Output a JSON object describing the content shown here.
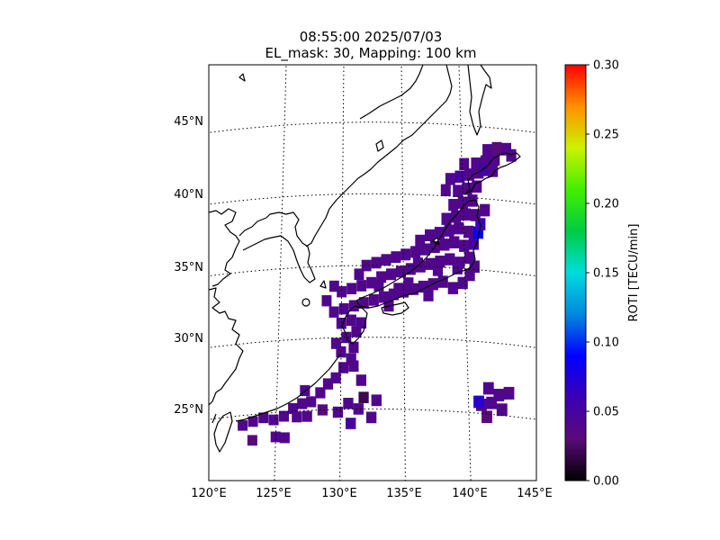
{
  "title": {
    "line1": "08:55:00 2025/07/03",
    "line2": "EL_mask: 30, Mapping: 100 km"
  },
  "colorbar": {
    "label": "ROTI [TECU/min]",
    "colormap": "nipy_spectral-like",
    "ticks": [
      "0.00",
      "0.05",
      "0.10",
      "0.15",
      "0.20",
      "0.25",
      "0.30"
    ]
  },
  "chart_data": {
    "type": "heatmap",
    "projection": "conic (Lambert-like) map",
    "extent": {
      "lon": [
        120,
        145
      ],
      "lat": [
        20,
        49
      ]
    },
    "lon_ticks": [
      "120°E",
      "125°E",
      "130°E",
      "135°E",
      "140°E",
      "145°E"
    ],
    "lat_ticks": [
      "25°N",
      "30°N",
      "35°N",
      "40°N",
      "45°N"
    ],
    "meridians": [
      125,
      130,
      135,
      140
    ],
    "parallels": [
      25,
      30,
      35,
      40,
      45
    ],
    "grid": "dotted",
    "value_range": [
      0.0,
      0.3
    ],
    "value_label": "ROTI [TECU/min]",
    "cell_size_deg": 0.8,
    "background_value": 0.04,
    "cells": [
      [
        122.4,
        24.3,
        0.04
      ],
      [
        123.2,
        24.5,
        0.04
      ],
      [
        124.0,
        24.7,
        0.04
      ],
      [
        124.8,
        24.5,
        0.04
      ],
      [
        125.6,
        24.7,
        0.04
      ],
      [
        123.2,
        23.2,
        0.03
      ],
      [
        125.0,
        23.3,
        0.04
      ],
      [
        125.7,
        23.2,
        0.04
      ],
      [
        126.3,
        25.2,
        0.04
      ],
      [
        127.0,
        25.5,
        0.04
      ],
      [
        127.7,
        25.6,
        0.04
      ],
      [
        128.4,
        26.2,
        0.04
      ],
      [
        127.2,
        26.4,
        0.04
      ],
      [
        129.0,
        26.8,
        0.04
      ],
      [
        128.6,
        25.0,
        0.03
      ],
      [
        129.6,
        27.2,
        0.04
      ],
      [
        130.2,
        27.9,
        0.04
      ],
      [
        130.8,
        28.5,
        0.04
      ],
      [
        130.0,
        29.0,
        0.04
      ],
      [
        131.0,
        29.3,
        0.04
      ],
      [
        130.4,
        30.0,
        0.04
      ],
      [
        131.2,
        30.4,
        0.04
      ],
      [
        130.0,
        31.0,
        0.04
      ],
      [
        130.8,
        31.2,
        0.04
      ],
      [
        131.6,
        31.0,
        0.04
      ],
      [
        129.4,
        31.8,
        0.04
      ],
      [
        130.2,
        32.0,
        0.04
      ],
      [
        131.0,
        32.2,
        0.04
      ],
      [
        131.8,
        32.4,
        0.04
      ],
      [
        132.6,
        32.6,
        0.04
      ],
      [
        133.4,
        32.8,
        0.04
      ],
      [
        134.2,
        33.0,
        0.04
      ],
      [
        135.0,
        33.2,
        0.04
      ],
      [
        135.8,
        33.4,
        0.04
      ],
      [
        136.6,
        33.6,
        0.04
      ],
      [
        137.4,
        33.8,
        0.04
      ],
      [
        138.2,
        34.0,
        0.04
      ],
      [
        139.0,
        33.6,
        0.04
      ],
      [
        139.8,
        34.0,
        0.04
      ],
      [
        140.4,
        34.6,
        0.04
      ],
      [
        130.0,
        33.2,
        0.04
      ],
      [
        130.8,
        33.4,
        0.04
      ],
      [
        131.6,
        33.6,
        0.04
      ],
      [
        132.4,
        33.8,
        0.04
      ],
      [
        133.2,
        34.2,
        0.04
      ],
      [
        134.0,
        34.4,
        0.04
      ],
      [
        134.8,
        34.6,
        0.04
      ],
      [
        135.6,
        34.8,
        0.04
      ],
      [
        136.4,
        35.0,
        0.04
      ],
      [
        137.2,
        35.2,
        0.04
      ],
      [
        138.0,
        35.4,
        0.04
      ],
      [
        138.8,
        35.6,
        0.04
      ],
      [
        139.6,
        35.4,
        0.04
      ],
      [
        140.4,
        35.8,
        0.04
      ],
      [
        132.0,
        35.0,
        0.04
      ],
      [
        132.8,
        35.2,
        0.04
      ],
      [
        133.6,
        35.4,
        0.04
      ],
      [
        134.4,
        35.6,
        0.04
      ],
      [
        135.2,
        35.8,
        0.04
      ],
      [
        136.0,
        36.0,
        0.04
      ],
      [
        136.8,
        36.2,
        0.04
      ],
      [
        137.6,
        36.4,
        0.04
      ],
      [
        138.4,
        36.6,
        0.04
      ],
      [
        139.2,
        36.8,
        0.04
      ],
      [
        140.0,
        36.6,
        0.04
      ],
      [
        140.8,
        36.8,
        0.05
      ],
      [
        136.4,
        36.8,
        0.04
      ],
      [
        137.2,
        37.2,
        0.04
      ],
      [
        138.0,
        37.4,
        0.04
      ],
      [
        138.8,
        37.6,
        0.04
      ],
      [
        139.6,
        37.8,
        0.04
      ],
      [
        140.4,
        37.6,
        0.04
      ],
      [
        141.2,
        37.6,
        0.09
      ],
      [
        141.4,
        38.2,
        0.06
      ],
      [
        138.6,
        38.4,
        0.04
      ],
      [
        139.4,
        38.6,
        0.04
      ],
      [
        140.2,
        38.8,
        0.04
      ],
      [
        141.0,
        38.8,
        0.04
      ],
      [
        141.8,
        39.2,
        0.04
      ],
      [
        139.2,
        39.4,
        0.04
      ],
      [
        140.0,
        39.6,
        0.04
      ],
      [
        140.8,
        39.8,
        0.04
      ],
      [
        139.6,
        40.4,
        0.04
      ],
      [
        140.4,
        40.6,
        0.04
      ],
      [
        141.2,
        40.8,
        0.04
      ],
      [
        138.6,
        40.4,
        0.04
      ],
      [
        139.0,
        41.2,
        0.04
      ],
      [
        139.8,
        41.4,
        0.05
      ],
      [
        140.6,
        41.6,
        0.04
      ],
      [
        141.4,
        41.8,
        0.04
      ],
      [
        140.2,
        42.3,
        0.04
      ],
      [
        141.2,
        42.4,
        0.04
      ],
      [
        142.0,
        42.6,
        0.04
      ],
      [
        142.8,
        42.8,
        0.04
      ],
      [
        142.2,
        43.4,
        0.04
      ],
      [
        143.0,
        43.6,
        0.03
      ],
      [
        143.8,
        43.6,
        0.04
      ],
      [
        144.2,
        43.2,
        0.04
      ],
      [
        142.6,
        42.0,
        0.04
      ],
      [
        141.8,
        42.0,
        0.05
      ],
      [
        131.0,
        28.0,
        0.04
      ],
      [
        129.6,
        29.6,
        0.04
      ],
      [
        128.8,
        32.6,
        0.04
      ],
      [
        129.4,
        33.6,
        0.04
      ],
      [
        131.4,
        34.4,
        0.04
      ],
      [
        133.0,
        33.6,
        0.04
      ],
      [
        135.4,
        33.8,
        0.04
      ],
      [
        137.8,
        34.8,
        0.04
      ],
      [
        139.4,
        35.0,
        0.04
      ],
      [
        140.8,
        35.2,
        0.04
      ],
      [
        131.6,
        27.0,
        0.04
      ],
      [
        132.8,
        25.6,
        0.04
      ],
      [
        132.4,
        24.4,
        0.04
      ],
      [
        130.8,
        24.0,
        0.05
      ],
      [
        129.8,
        24.8,
        0.04
      ],
      [
        130.6,
        25.4,
        0.04
      ],
      [
        131.4,
        25.0,
        0.04
      ],
      [
        131.8,
        25.8,
        0.02
      ],
      [
        127.4,
        24.6,
        0.04
      ],
      [
        126.6,
        24.6,
        0.04
      ],
      [
        141.6,
        26.8,
        0.04
      ],
      [
        142.4,
        26.4,
        0.04
      ],
      [
        143.2,
        26.6,
        0.04
      ],
      [
        141.0,
        25.6,
        0.04
      ],
      [
        141.8,
        25.8,
        0.04
      ],
      [
        142.6,
        25.4,
        0.04
      ],
      [
        141.4,
        24.8,
        0.03
      ],
      [
        140.8,
        25.8,
        0.07
      ],
      [
        136.2,
        35.2,
        0.04
      ],
      [
        134.6,
        33.4,
        0.04
      ],
      [
        133.8,
        32.2,
        0.04
      ],
      [
        137.0,
        33.0,
        0.04
      ]
    ]
  }
}
